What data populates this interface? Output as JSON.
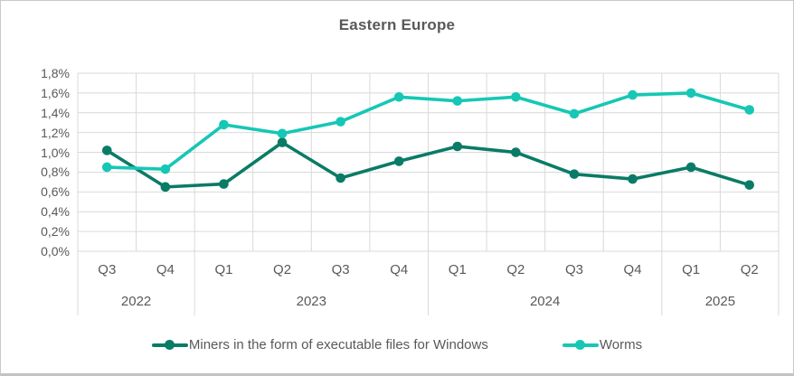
{
  "chart_data": {
    "type": "line",
    "title": "Eastern Europe",
    "x_axis": {
      "quarters": [
        "Q3",
        "Q4",
        "Q1",
        "Q2",
        "Q3",
        "Q4",
        "Q1",
        "Q2",
        "Q3",
        "Q4",
        "Q1",
        "Q2"
      ],
      "year_groups": [
        {
          "label": "2022",
          "span": 2
        },
        {
          "label": "2023",
          "span": 4
        },
        {
          "label": "2024",
          "span": 4
        },
        {
          "label": "2025",
          "span": 2
        }
      ]
    },
    "y_axis": {
      "min": 0.0,
      "max": 1.8,
      "step": 0.2,
      "unit": "%",
      "decimal_separator": ",",
      "tick_labels": [
        "0,0%",
        "0,2%",
        "0,4%",
        "0,6%",
        "0,8%",
        "1,0%",
        "1,2%",
        "1,4%",
        "1,6%",
        "1,8%"
      ]
    },
    "series": [
      {
        "name": "Miners in the form of executable files for Windows",
        "color": "#0A7B66",
        "values": [
          1.02,
          0.65,
          0.68,
          1.1,
          0.74,
          0.91,
          1.06,
          1.0,
          0.78,
          0.73,
          0.85,
          0.67
        ]
      },
      {
        "name": "Worms",
        "color": "#16C7B5",
        "values": [
          0.85,
          0.83,
          1.28,
          1.19,
          1.31,
          1.56,
          1.52,
          1.56,
          1.39,
          1.58,
          1.6,
          1.43
        ]
      }
    ],
    "grid": true,
    "legend_position": "bottom"
  },
  "colors": {
    "grid": "#d9d9d9",
    "axis_text": "#595959",
    "title_text": "#595959",
    "background": "#ffffff",
    "border": "#c9c9c9"
  }
}
